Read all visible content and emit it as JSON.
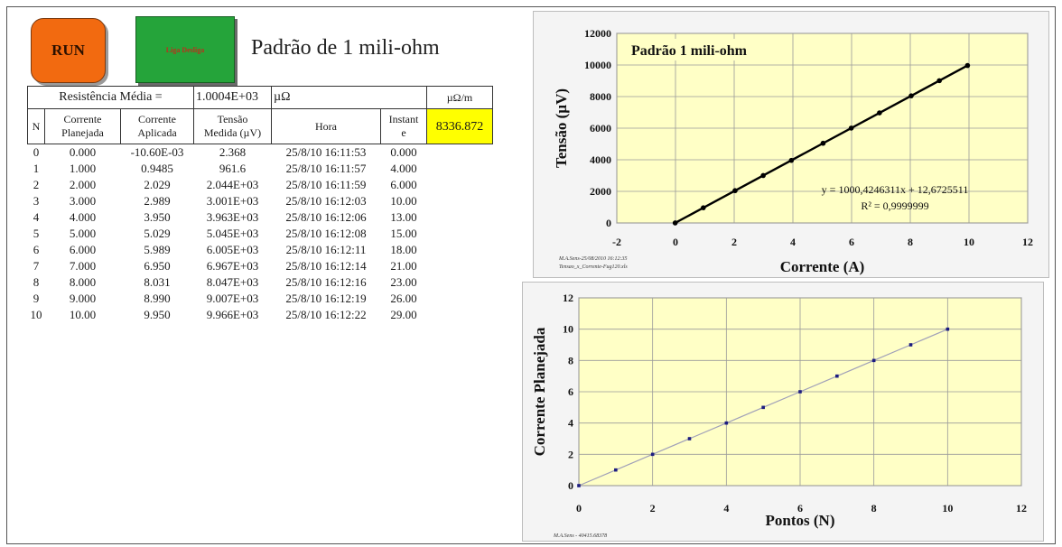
{
  "buttons": {
    "run_label": "RUN",
    "stop_label": "Liga Desliga"
  },
  "page_title": "Padrão de 1 mili-ohm",
  "summary": {
    "label": "Resistência Média =",
    "value": "1.0004E+03",
    "unit": "µΩ",
    "unit2": "µΩ/m",
    "value2": "8336.872"
  },
  "table": {
    "headers": {
      "n": "N",
      "planejada": [
        "Corrente",
        "Planejada"
      ],
      "aplicada": [
        "Corrente",
        "Aplicada"
      ],
      "tensao": [
        "Tensão",
        "Medida (µV)"
      ],
      "hora": "Hora",
      "instante": [
        "Instant",
        "e"
      ]
    },
    "rows": [
      [
        "0",
        "0.000",
        "-10.60E-03",
        "2.368",
        "25/8/10 16:11:53",
        "0.000"
      ],
      [
        "1",
        "1.000",
        "0.9485",
        "961.6",
        "25/8/10 16:11:57",
        "4.000"
      ],
      [
        "2",
        "2.000",
        "2.029",
        "2.044E+03",
        "25/8/10 16:11:59",
        "6.000"
      ],
      [
        "3",
        "3.000",
        "2.989",
        "3.001E+03",
        "25/8/10 16:12:03",
        "10.00"
      ],
      [
        "4",
        "4.000",
        "3.950",
        "3.963E+03",
        "25/8/10 16:12:06",
        "13.00"
      ],
      [
        "5",
        "5.000",
        "5.029",
        "5.045E+03",
        "25/8/10 16:12:08",
        "15.00"
      ],
      [
        "6",
        "6.000",
        "5.989",
        "6.005E+03",
        "25/8/10 16:12:11",
        "18.00"
      ],
      [
        "7",
        "7.000",
        "6.950",
        "6.967E+03",
        "25/8/10 16:12:14",
        "21.00"
      ],
      [
        "8",
        "8.000",
        "8.031",
        "8.047E+03",
        "25/8/10 16:12:16",
        "23.00"
      ],
      [
        "9",
        "9.000",
        "8.990",
        "9.007E+03",
        "25/8/10 16:12:19",
        "26.00"
      ],
      [
        "10",
        "10.00",
        "9.950",
        "9.966E+03",
        "25/8/10 16:12:22",
        "29.00"
      ]
    ]
  },
  "chart_data": [
    {
      "type": "scatter",
      "title": "Padrão 1 mili-ohm",
      "xlabel": "Corrente (A)",
      "ylabel": "Tensão (µV)",
      "xlim": [
        -2,
        12
      ],
      "ylim": [
        0,
        12000
      ],
      "xticks": [
        -2,
        0,
        2,
        4,
        6,
        8,
        10,
        12
      ],
      "yticks": [
        0,
        2000,
        4000,
        6000,
        8000,
        10000,
        12000
      ],
      "grid": true,
      "series": [
        {
          "x": [
            -0.0106,
            0.9485,
            2.029,
            2.989,
            3.95,
            5.029,
            5.989,
            6.95,
            8.031,
            8.99,
            9.95
          ],
          "y": [
            2.368,
            961.6,
            2044,
            3001,
            3963,
            5045,
            6005,
            6967,
            8047,
            9007,
            9966
          ]
        }
      ],
      "trendline": {
        "slope": 1000.4246311,
        "intercept": 12.6725511
      },
      "equation": "y = 1000,4246311x + 12,6725511",
      "r2": "R² = 0,9999999",
      "footnote": [
        "M.A.Sens-25/08/2010 16:12:35",
        "Tensao_x_Corrente-Fug120.xls"
      ]
    },
    {
      "type": "line",
      "title": "",
      "xlabel": "Pontos (N)",
      "ylabel": "Corrente Planejada",
      "xlim": [
        0,
        12
      ],
      "ylim": [
        0,
        12
      ],
      "xticks": [
        0,
        2,
        4,
        6,
        8,
        10,
        12
      ],
      "yticks": [
        0,
        2,
        4,
        6,
        8,
        10,
        12
      ],
      "grid": true,
      "series": [
        {
          "x": [
            0,
            1,
            2,
            3,
            4,
            5,
            6,
            7,
            8,
            9,
            10
          ],
          "y": [
            0,
            1,
            2,
            3,
            4,
            5,
            6,
            7,
            8,
            9,
            10
          ]
        }
      ],
      "footnote": [
        "M.A.Sens - 40415.68378"
      ]
    }
  ]
}
